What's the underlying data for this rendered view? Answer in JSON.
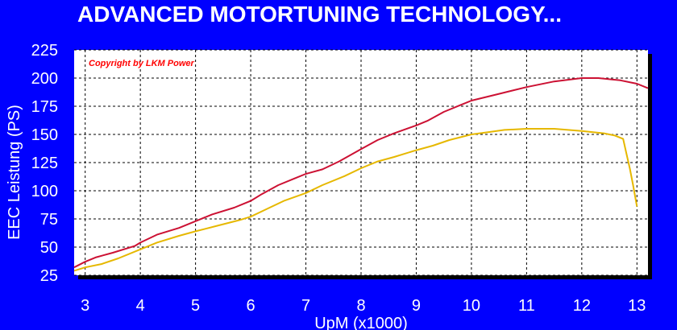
{
  "page": {
    "title": "ADVANCED MOTORTUNING TECHNOLOGY..."
  },
  "chart_data": {
    "type": "line",
    "title": "ADVANCED MOTORTUNING TECHNOLOGY...",
    "xlabel": "UpM (x1000)",
    "ylabel": "EEC Leistung (PS)",
    "annotation": "Copyright by LKM Power",
    "xlim": [
      2.8,
      13.2
    ],
    "ylim": [
      25,
      225
    ],
    "x_ticks": [
      "3",
      "4",
      "5",
      "6",
      "7",
      "8",
      "9",
      "10",
      "11",
      "12",
      "13"
    ],
    "y_ticks": [
      "25",
      "50",
      "75",
      "100",
      "125",
      "150",
      "175",
      "200",
      "225"
    ],
    "grid": true,
    "background": "#ffffff",
    "series": [
      {
        "color": "#cc1133",
        "points": [
          [
            2.8,
            32
          ],
          [
            3.0,
            37
          ],
          [
            3.2,
            41
          ],
          [
            3.5,
            45
          ],
          [
            3.9,
            51
          ],
          [
            4.0,
            54
          ],
          [
            4.3,
            61
          ],
          [
            4.7,
            67
          ],
          [
            5.0,
            73
          ],
          [
            5.3,
            79
          ],
          [
            5.7,
            85
          ],
          [
            6.0,
            91
          ],
          [
            6.2,
            97
          ],
          [
            6.5,
            105
          ],
          [
            6.8,
            111
          ],
          [
            7.0,
            115
          ],
          [
            7.3,
            119
          ],
          [
            7.6,
            126
          ],
          [
            8.0,
            137
          ],
          [
            8.3,
            145
          ],
          [
            8.6,
            151
          ],
          [
            9.0,
            158
          ],
          [
            9.2,
            162
          ],
          [
            9.5,
            170
          ],
          [
            9.8,
            176
          ],
          [
            10.0,
            180
          ],
          [
            10.5,
            186
          ],
          [
            11.0,
            192
          ],
          [
            11.5,
            197
          ],
          [
            12.0,
            200
          ],
          [
            12.3,
            200
          ],
          [
            12.7,
            198
          ],
          [
            12.9,
            196
          ],
          [
            13.0,
            195
          ],
          [
            13.2,
            191
          ]
        ]
      },
      {
        "color": "#e6b800",
        "points": [
          [
            2.8,
            29
          ],
          [
            3.0,
            32
          ],
          [
            3.3,
            35
          ],
          [
            3.6,
            40
          ],
          [
            4.0,
            48
          ],
          [
            4.3,
            54
          ],
          [
            4.7,
            60
          ],
          [
            5.0,
            64
          ],
          [
            5.4,
            69
          ],
          [
            5.8,
            74
          ],
          [
            6.0,
            77
          ],
          [
            6.3,
            84
          ],
          [
            6.6,
            91
          ],
          [
            7.0,
            98
          ],
          [
            7.3,
            105
          ],
          [
            7.7,
            113
          ],
          [
            8.0,
            120
          ],
          [
            8.3,
            126
          ],
          [
            8.6,
            130
          ],
          [
            9.0,
            136
          ],
          [
            9.3,
            140
          ],
          [
            9.6,
            145
          ],
          [
            10.0,
            150
          ],
          [
            10.3,
            152
          ],
          [
            10.6,
            154
          ],
          [
            11.0,
            155
          ],
          [
            11.5,
            155
          ],
          [
            12.0,
            153
          ],
          [
            12.4,
            151
          ],
          [
            12.6,
            149
          ],
          [
            12.75,
            146
          ],
          [
            12.8,
            135
          ],
          [
            12.87,
            120
          ],
          [
            12.93,
            105
          ],
          [
            13.0,
            86
          ]
        ]
      }
    ]
  }
}
